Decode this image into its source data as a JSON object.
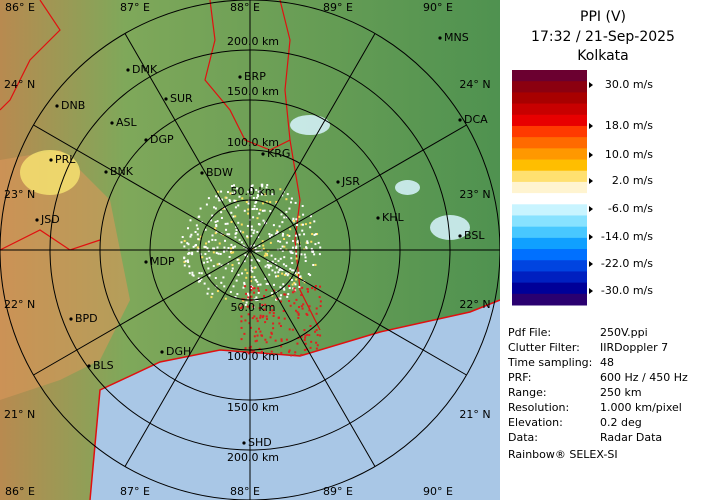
{
  "header": {
    "title": "PPI (V)",
    "time": "17:32 / 21-Sep-2025",
    "station": "Kolkata"
  },
  "legend": {
    "labels": [
      "30.0 m/s",
      "18.0 m/s",
      "10.0 m/s",
      "2.0 m/s",
      "-6.0 m/s",
      "-14.0 m/s",
      "-22.0 m/s",
      "-30.0 m/s"
    ]
  },
  "info": {
    "rows": [
      [
        "Pdf File:",
        "250V.ppi"
      ],
      [
        "Clutter Filter:",
        "IIRDoppler 7"
      ],
      [
        "Time sampling:",
        "48"
      ],
      [
        "PRF:",
        "600 Hz / 450 Hz"
      ],
      [
        "Range:",
        "250 km"
      ],
      [
        "Resolution:",
        "1.000 km/pixel"
      ],
      [
        "Elevation:",
        "0.2 deg"
      ],
      [
        "Data:",
        "Radar Data"
      ]
    ],
    "footer": "Rainbow® SELEX-SI"
  },
  "map": {
    "lon_labels": [
      "86° E",
      "87° E",
      "88° E",
      "89° E",
      "90° E"
    ],
    "lat_labels": [
      "24° N",
      "23° N",
      "22° N",
      "21° N"
    ],
    "range_labels": [
      "50.0 km",
      "100.0 km",
      "150.0 km",
      "200.0 km"
    ],
    "cities": [
      "MNS",
      "DMK",
      "BRP",
      "DNB",
      "SUR",
      "ASL",
      "DCA",
      "DGP",
      "KRG",
      "PRL",
      "BNK",
      "BDW",
      "JSR",
      "KHL",
      "JSD",
      "BSL",
      "MDP",
      "BPD",
      "DGH",
      "BLS",
      "SHD"
    ]
  }
}
